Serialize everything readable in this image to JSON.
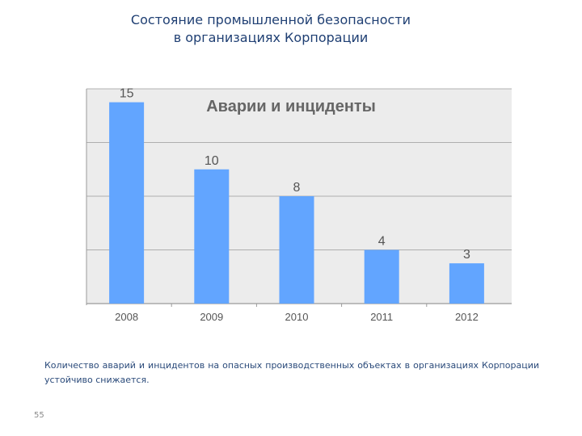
{
  "slide": {
    "title_line1": "Состояние промышленной безопасности",
    "title_line2": "в организациях Корпорации",
    "summary": "Количество аварий и инцидентов на опасных производственных объектах в организациях Корпорации устойчиво снижается.",
    "page_number": "55"
  },
  "chart_data": {
    "type": "bar",
    "title": "Аварии и инциденты",
    "categories": [
      "2008",
      "2009",
      "2010",
      "2011",
      "2012"
    ],
    "values": [
      15,
      10,
      8,
      4,
      3
    ],
    "data_labels": [
      "15",
      "10",
      "8",
      "4",
      "3"
    ],
    "ylim": [
      0,
      16
    ],
    "grid": true,
    "colors": {
      "bar": "#62a5ff",
      "plot_bg": "#ececec",
      "grid": "#9a9a9a",
      "title": "#666666",
      "label": "#555555"
    }
  }
}
